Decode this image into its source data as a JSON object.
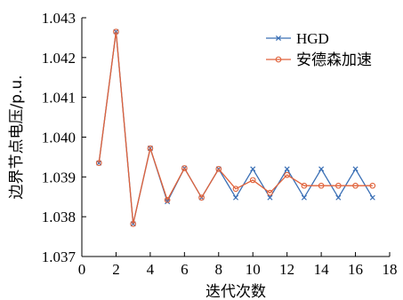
{
  "chart_data": {
    "type": "line",
    "xlabel": "迭代次数",
    "ylabel": "边界节点电压/p.u.",
    "xlim": [
      0,
      18
    ],
    "ylim": [
      1.037,
      1.043
    ],
    "xticks": [
      0,
      2,
      4,
      6,
      8,
      10,
      12,
      14,
      16,
      18
    ],
    "xtick_labels": [
      "0",
      "2",
      "4",
      "6",
      "8",
      "10",
      "12",
      "14",
      "16",
      "18"
    ],
    "yticks": [
      1.037,
      1.038,
      1.039,
      1.04,
      1.041,
      1.042,
      1.043
    ],
    "ytick_labels": [
      "1.037",
      "1.038",
      "1.039",
      "1.040",
      "1.041",
      "1.042",
      "1.043"
    ],
    "grid": false,
    "legend_position": "top-right",
    "x": [
      1,
      2,
      3,
      4,
      5,
      6,
      7,
      8,
      9,
      10,
      11,
      12,
      13,
      14,
      15,
      16,
      17
    ],
    "series": [
      {
        "name": "HGD",
        "color": "#3a6fb5",
        "marker": "x",
        "values": [
          1.03935,
          1.04265,
          1.03782,
          1.03972,
          1.03838,
          1.03922,
          1.03848,
          1.0392,
          1.03848,
          1.0392,
          1.03848,
          1.0392,
          1.03848,
          1.0392,
          1.03848,
          1.0392,
          1.03848
        ]
      },
      {
        "name": "安德森加速",
        "color": "#e0623a",
        "marker": "circle",
        "values": [
          1.03935,
          1.04265,
          1.03782,
          1.03972,
          1.03842,
          1.03922,
          1.03848,
          1.0392,
          1.0387,
          1.03892,
          1.0386,
          1.03905,
          1.03878,
          1.03878,
          1.03878,
          1.03878,
          1.03878
        ]
      }
    ]
  }
}
